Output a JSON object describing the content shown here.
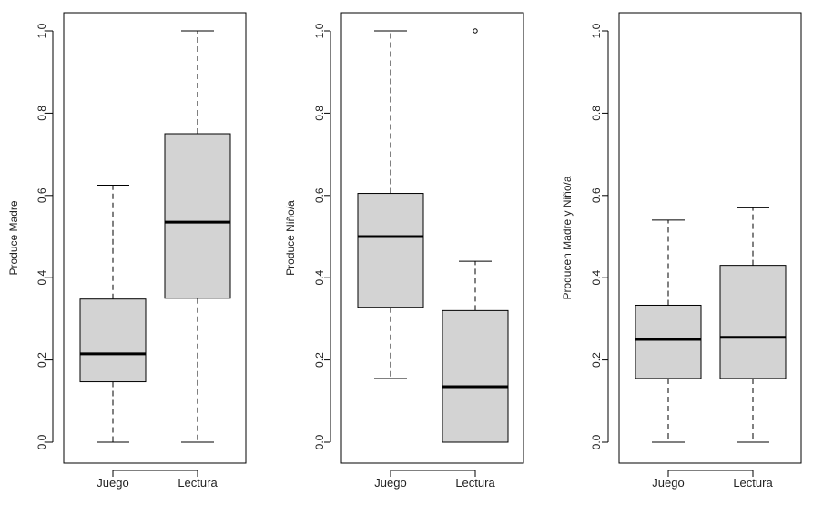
{
  "chart_data": [
    {
      "type": "boxplot",
      "ylabel": "Produce Madre",
      "ylim": [
        0,
        1
      ],
      "yticks": [
        "0.0",
        "0.2",
        "0.4",
        "0.6",
        "0.8",
        "1.0"
      ],
      "categories": [
        "Juego",
        "Lectura"
      ],
      "boxes": [
        {
          "category": "Juego",
          "whisker_low": 0.0,
          "q1": 0.147,
          "median": 0.215,
          "q3": 0.348,
          "whisker_high": 0.625,
          "outliers": []
        },
        {
          "category": "Lectura",
          "whisker_low": 0.0,
          "q1": 0.35,
          "median": 0.535,
          "q3": 0.75,
          "whisker_high": 1.0,
          "outliers": []
        }
      ],
      "grid": false
    },
    {
      "type": "boxplot",
      "ylabel": "Produce Niño/a",
      "ylim": [
        0,
        1
      ],
      "yticks": [
        "0.0",
        "0.2",
        "0.4",
        "0.6",
        "0.8",
        "1.0"
      ],
      "categories": [
        "Juego",
        "Lectura"
      ],
      "boxes": [
        {
          "category": "Juego",
          "whisker_low": 0.155,
          "q1": 0.328,
          "median": 0.5,
          "q3": 0.605,
          "whisker_high": 1.0,
          "outliers": []
        },
        {
          "category": "Lectura",
          "whisker_low": 0.0,
          "q1": 0.0,
          "median": 0.135,
          "q3": 0.32,
          "whisker_high": 0.44,
          "outliers": [
            1.0
          ]
        }
      ],
      "grid": false
    },
    {
      "type": "boxplot",
      "ylabel": "Producen Madre y Niño/a",
      "ylim": [
        0,
        1
      ],
      "yticks": [
        "0.0",
        "0.2",
        "0.4",
        "0.6",
        "0.8",
        "1.0"
      ],
      "categories": [
        "Juego",
        "Lectura"
      ],
      "boxes": [
        {
          "category": "Juego",
          "whisker_low": 0.0,
          "q1": 0.155,
          "median": 0.25,
          "q3": 0.333,
          "whisker_high": 0.54,
          "outliers": []
        },
        {
          "category": "Lectura",
          "whisker_low": 0.0,
          "q1": 0.155,
          "median": 0.255,
          "q3": 0.43,
          "whisker_high": 0.57,
          "outliers": []
        }
      ],
      "grid": false
    }
  ],
  "colors": {
    "box_fill": "#d3d3d3",
    "stroke": "#000000",
    "text": "#222222"
  }
}
